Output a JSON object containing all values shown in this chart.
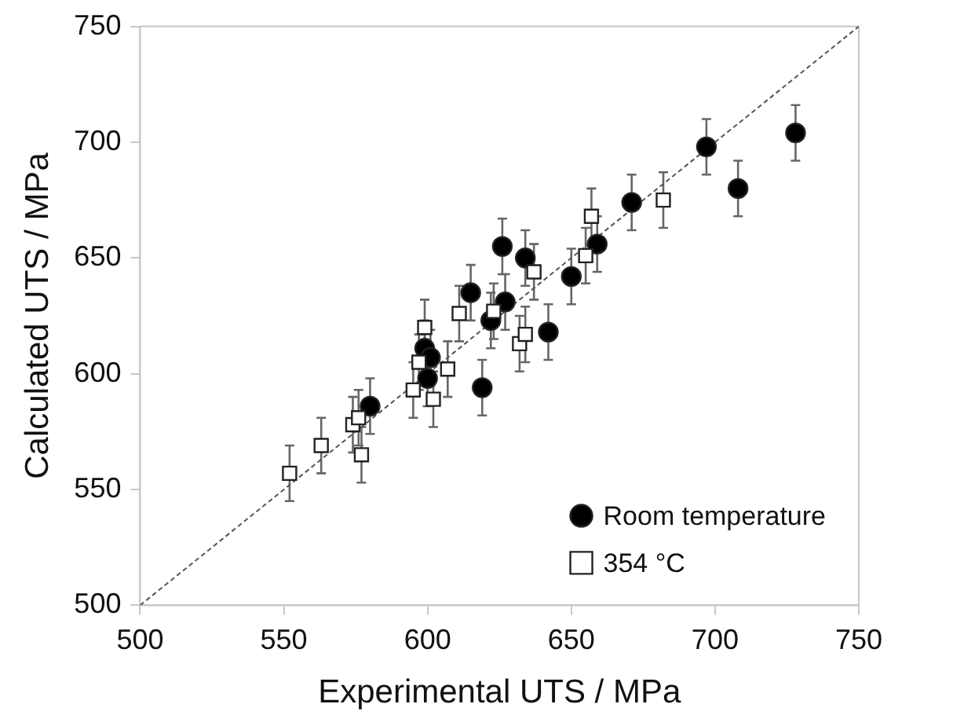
{
  "chart_data": {
    "type": "scatter",
    "xlabel": "Experimental UTS / MPa",
    "ylabel": "Calculated UTS / MPa",
    "xlim": [
      500,
      750
    ],
    "ylim": [
      500,
      750
    ],
    "xticks": [
      500,
      550,
      600,
      650,
      700,
      750
    ],
    "yticks": [
      500,
      550,
      600,
      650,
      700,
      750
    ],
    "grid": false,
    "legend": "bottom right",
    "series": [
      {
        "name": "Room temperature",
        "marker": "circle",
        "color": "#000000",
        "x": [
          580,
          600,
          599,
          601,
          615,
          619,
          622,
          626,
          627,
          634,
          642,
          650,
          659,
          671,
          697,
          708,
          728
        ],
        "values": [
          586,
          598,
          611,
          607,
          635,
          594,
          623,
          655,
          631,
          650,
          618,
          642,
          656,
          674,
          698,
          680,
          704
        ],
        "errors": [
          12,
          12,
          12,
          12,
          12,
          12,
          12,
          12,
          12,
          12,
          12,
          12,
          12,
          12,
          12,
          12,
          12
        ]
      },
      {
        "name": "354 °C",
        "marker": "square",
        "color": "#ffffff",
        "x": [
          552,
          563,
          574,
          576,
          577,
          595,
          597,
          599,
          602,
          607,
          611,
          623,
          632,
          634,
          637,
          655,
          657,
          682
        ],
        "values": [
          557,
          569,
          578,
          581,
          565,
          593,
          605,
          620,
          589,
          602,
          626,
          627,
          613,
          617,
          644,
          651,
          668,
          675
        ],
        "errors": [
          12,
          12,
          12,
          12,
          12,
          12,
          12,
          12,
          12,
          12,
          12,
          12,
          12,
          12,
          12,
          12,
          12,
          12
        ]
      },
      {
        "type": "line",
        "color": "#555555",
        "line_style": "dashed",
        "marker": "none",
        "x": [
          500,
          750
        ],
        "values": [
          500,
          750
        ]
      }
    ]
  }
}
